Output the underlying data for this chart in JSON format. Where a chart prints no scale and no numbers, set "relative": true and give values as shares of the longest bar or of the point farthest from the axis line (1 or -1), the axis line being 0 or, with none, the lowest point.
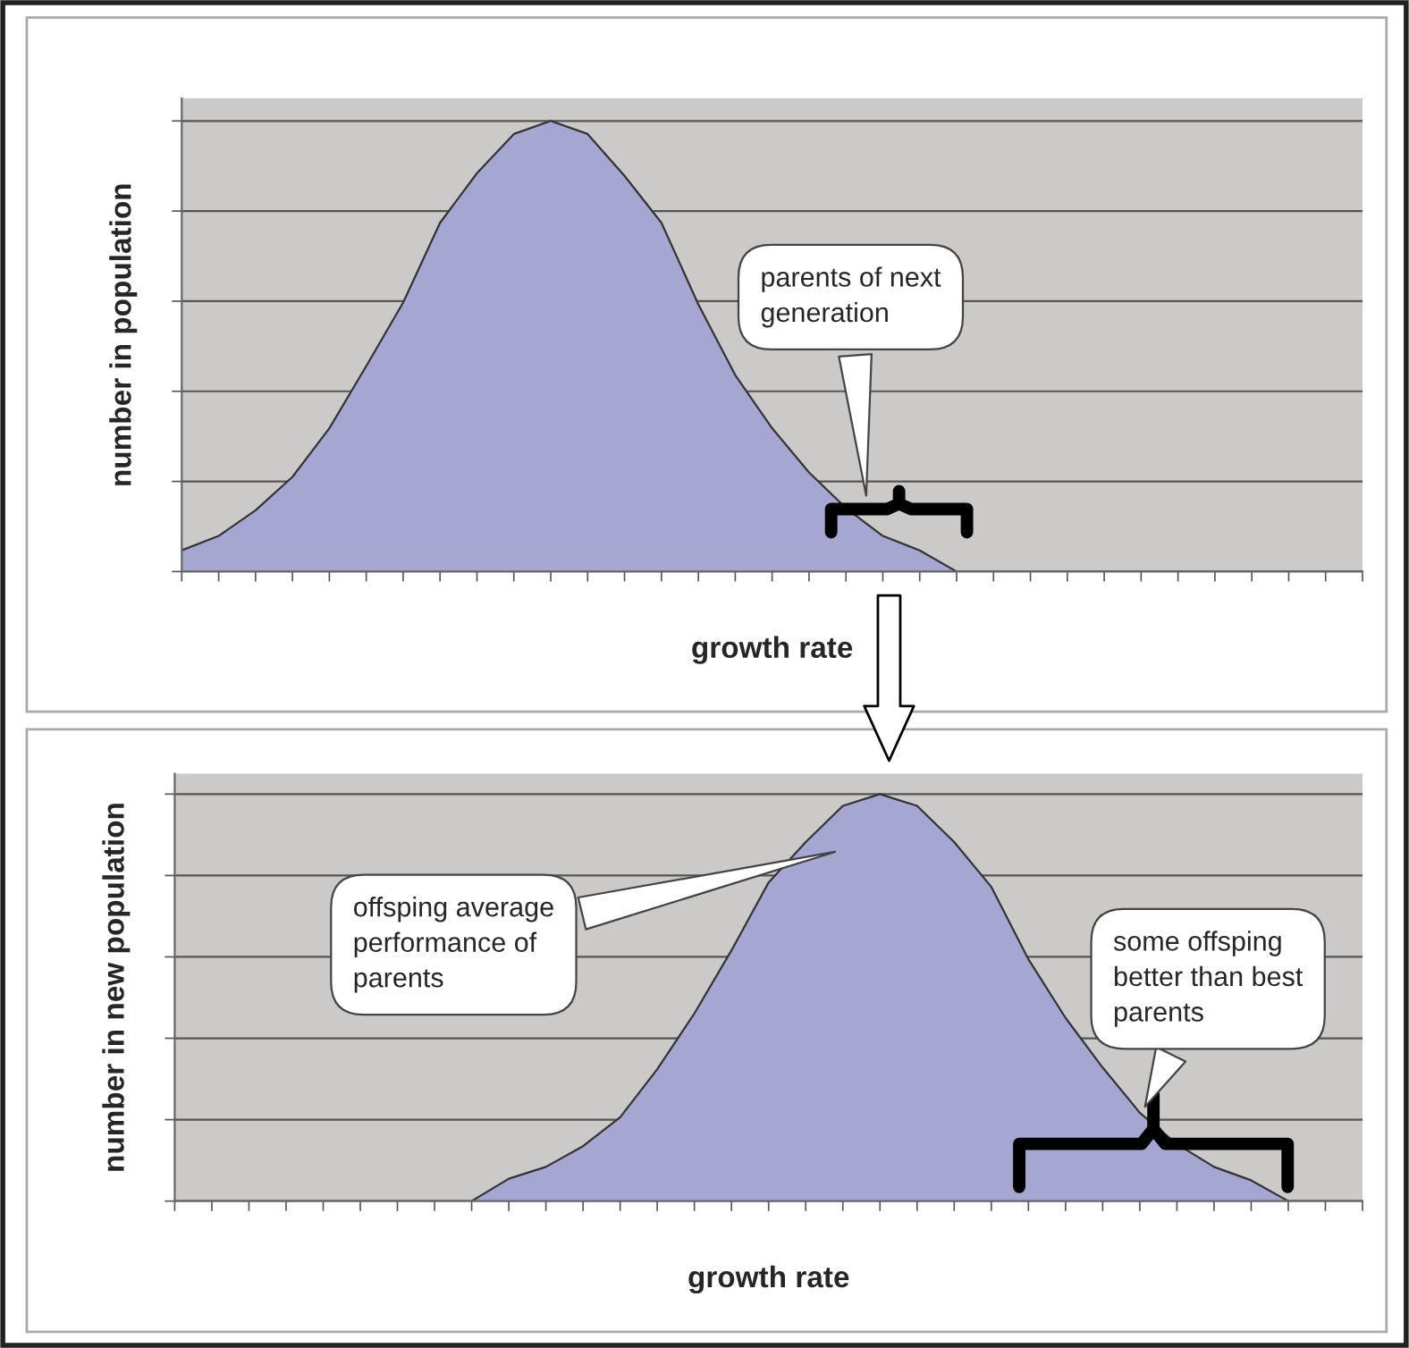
{
  "chart_data": [
    {
      "type": "area",
      "relative": true,
      "ylabel": "number in population",
      "xlabel": "growth rate",
      "color": "#a6a6d3",
      "grid": "y",
      "tick_labels": false,
      "categories": [
        null,
        null,
        null,
        null,
        null,
        null,
        null,
        null,
        null,
        null,
        null,
        null,
        null,
        null,
        null,
        null,
        null,
        null,
        null,
        null,
        null,
        null,
        null,
        null,
        null,
        null,
        null,
        null,
        null,
        null,
        null,
        null,
        null
      ],
      "values": [
        0.047,
        0.079,
        0.136,
        0.21,
        0.318,
        0.456,
        0.597,
        0.774,
        0.884,
        0.971,
        1.0,
        0.971,
        0.878,
        0.774,
        0.593,
        0.436,
        0.318,
        0.22,
        0.141,
        0.079,
        0.047,
        0,
        null,
        null,
        null,
        null,
        null,
        null,
        null,
        null,
        null,
        null,
        null
      ],
      "annotations": [
        "parents of next generation"
      ]
    },
    {
      "type": "area",
      "relative": true,
      "ylabel": "number in new population",
      "xlabel": "growth rate",
      "color": "#a6a6d3",
      "grid": "y",
      "tick_labels": false,
      "categories": [
        null,
        null,
        null,
        null,
        null,
        null,
        null,
        null,
        null,
        null,
        null,
        null,
        null,
        null,
        null,
        null,
        null,
        null,
        null,
        null,
        null,
        null,
        null,
        null,
        null,
        null,
        null,
        null,
        null,
        null,
        null,
        null,
        null
      ],
      "values": [
        null,
        null,
        null,
        null,
        null,
        null,
        null,
        null,
        0,
        0.055,
        0.084,
        0.135,
        0.206,
        0.324,
        0.461,
        0.616,
        0.783,
        0.882,
        0.971,
        1.0,
        0.971,
        0.882,
        0.772,
        0.594,
        0.45,
        0.328,
        0.217,
        0.14,
        0.084,
        0.051,
        0,
        null,
        null
      ],
      "annotations": [
        "offsping average performance of parents",
        "some offsping better than best parents"
      ]
    }
  ]
}
